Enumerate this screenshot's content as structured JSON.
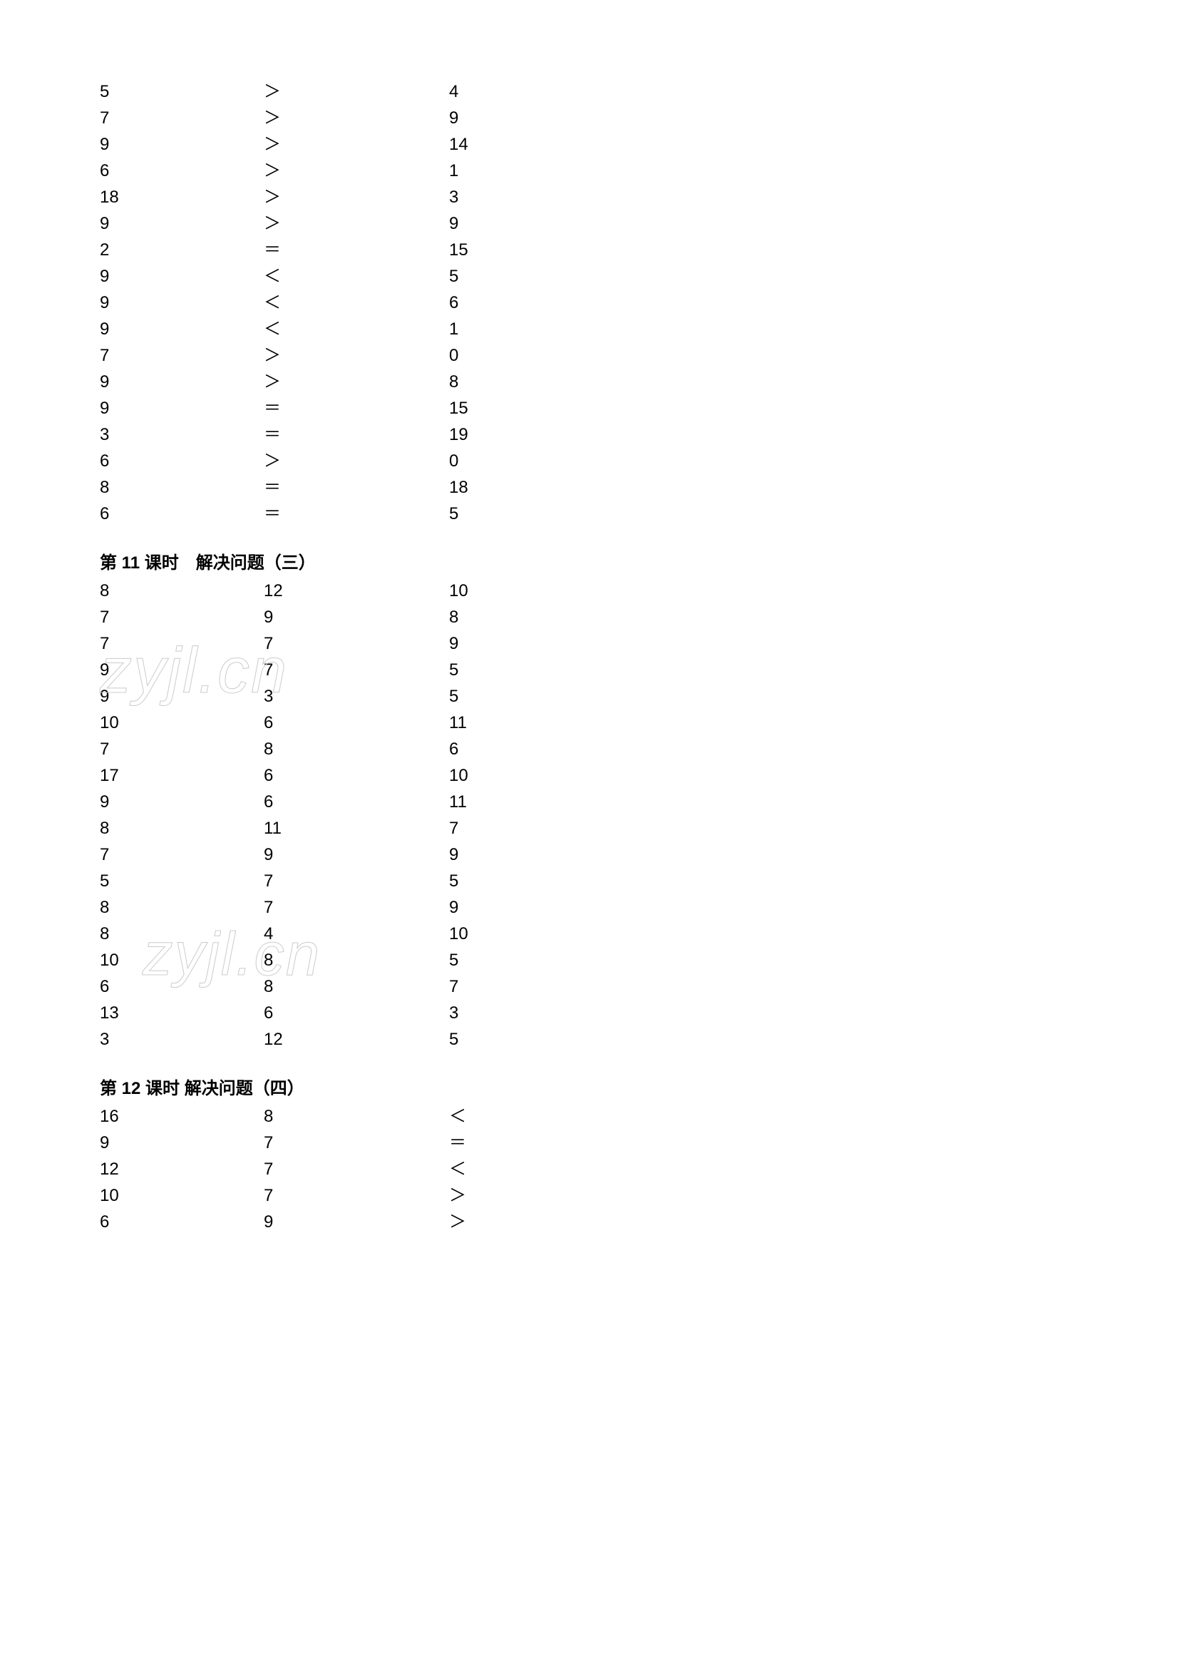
{
  "section1": {
    "rows": [
      {
        "c1": "5",
        "c2": "＞",
        "c3": "4"
      },
      {
        "c1": "7",
        "c2": "＞",
        "c3": "9"
      },
      {
        "c1": "9",
        "c2": "＞",
        "c3": "14"
      },
      {
        "c1": "6",
        "c2": "＞",
        "c3": "1"
      },
      {
        "c1": "18",
        "c2": "＞",
        "c3": "3"
      },
      {
        "c1": "9",
        "c2": "＞",
        "c3": "9"
      },
      {
        "c1": "2",
        "c2": "＝",
        "c3": "15"
      },
      {
        "c1": "9",
        "c2": "＜",
        "c3": "5"
      },
      {
        "c1": "9",
        "c2": "＜",
        "c3": "6"
      },
      {
        "c1": "9",
        "c2": "＜",
        "c3": "1"
      },
      {
        "c1": "7",
        "c2": "＞",
        "c3": "0"
      },
      {
        "c1": "9",
        "c2": "＞",
        "c3": "8"
      },
      {
        "c1": "9",
        "c2": "＝",
        "c3": "15"
      },
      {
        "c1": "3",
        "c2": "＝",
        "c3": "19"
      },
      {
        "c1": "6",
        "c2": "＞",
        "c3": "0"
      },
      {
        "c1": "8",
        "c2": "＝",
        "c3": "18"
      },
      {
        "c1": "6",
        "c2": "＝",
        "c3": "5"
      }
    ]
  },
  "section2": {
    "title": "第 11 课时　解决问题（三）",
    "rows": [
      {
        "c1": "8",
        "c2": "12",
        "c3": "10"
      },
      {
        "c1": "7",
        "c2": "9",
        "c3": "8"
      },
      {
        "c1": "7",
        "c2": "7",
        "c3": "9"
      },
      {
        "c1": "9",
        "c2": "7",
        "c3": "5"
      },
      {
        "c1": "9",
        "c2": "3",
        "c3": "5"
      },
      {
        "c1": "10",
        "c2": "6",
        "c3": "11"
      },
      {
        "c1": "7",
        "c2": "8",
        "c3": "6"
      },
      {
        "c1": "17",
        "c2": "6",
        "c3": "10"
      },
      {
        "c1": "9",
        "c2": "6",
        "c3": "11"
      },
      {
        "c1": "8",
        "c2": "11",
        "c3": "7"
      },
      {
        "c1": "7",
        "c2": "9",
        "c3": "9"
      },
      {
        "c1": "5",
        "c2": "7",
        "c3": "5"
      },
      {
        "c1": "8",
        "c2": "7",
        "c3": "9"
      },
      {
        "c1": "8",
        "c2": "4",
        "c3": "10"
      },
      {
        "c1": "10",
        "c2": "8",
        "c3": "5"
      },
      {
        "c1": "6",
        "c2": "8",
        "c3": "7"
      },
      {
        "c1": "13",
        "c2": "6",
        "c3": "3"
      },
      {
        "c1": "3",
        "c2": "12",
        "c3": "5"
      }
    ]
  },
  "section3": {
    "title": "第 12 课时  解决问题（四）",
    "rows": [
      {
        "c1": "16",
        "c2": "8",
        "c3": "＜"
      },
      {
        "c1": "9",
        "c2": "7",
        "c3": "＝"
      },
      {
        "c1": "12",
        "c2": "7",
        "c3": "＜"
      },
      {
        "c1": "10",
        "c2": "7",
        "c3": "＞"
      },
      {
        "c1": "6",
        "c2": "9",
        "c3": "＞"
      }
    ]
  },
  "watermark_text": "zyjl.cn"
}
